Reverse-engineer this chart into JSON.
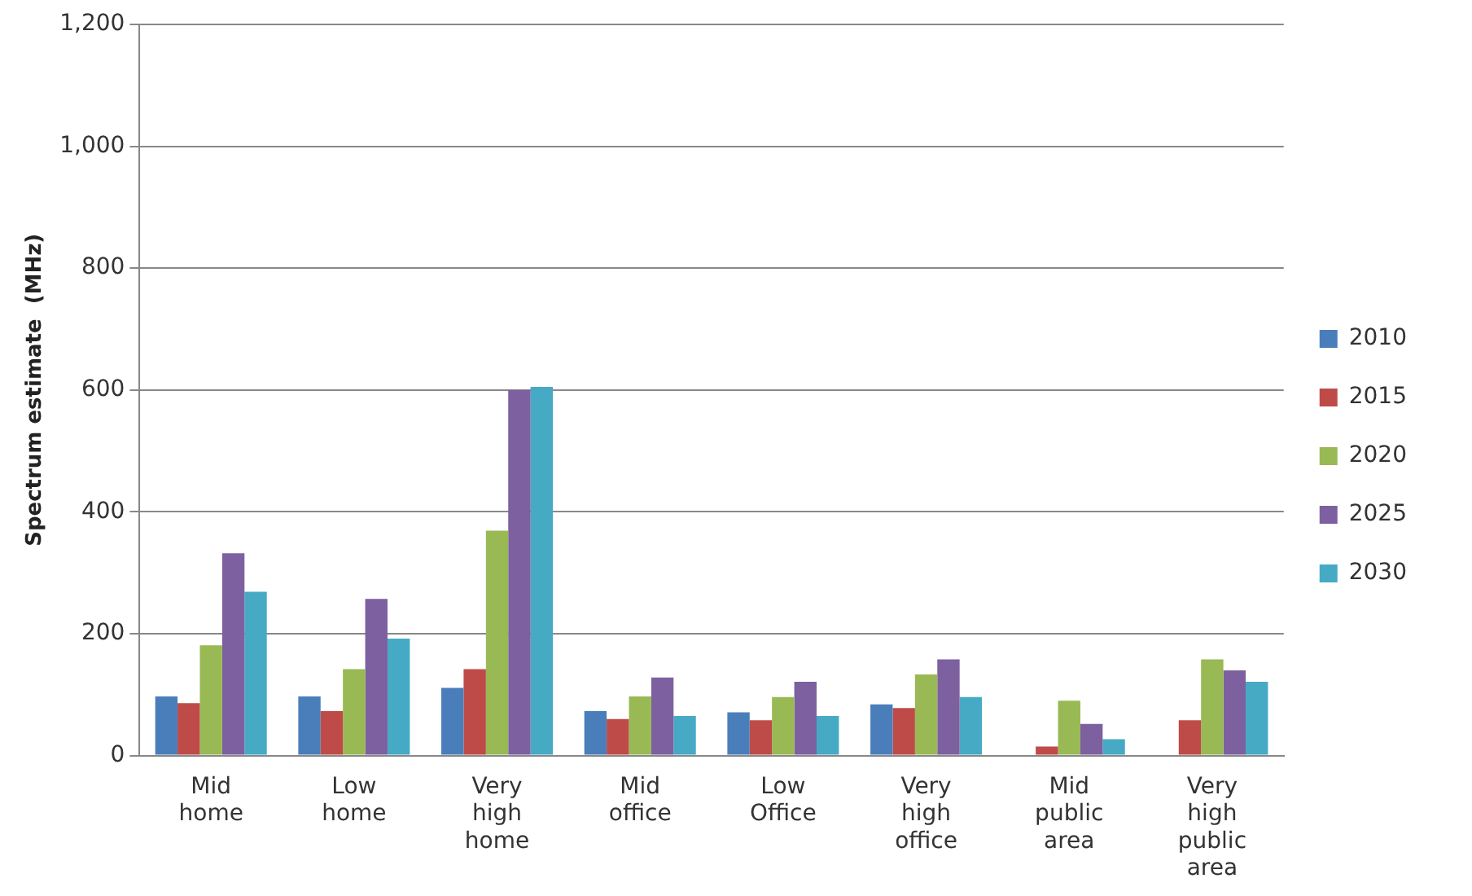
{
  "chart_data": {
    "type": "bar",
    "ylabel": "Spectrum estimate  (MHz)",
    "categories": [
      "Mid home",
      "Low home",
      "Very high home",
      "Mid office",
      "Low Office",
      "Very high office",
      "Mid public area",
      "Very high public area"
    ],
    "series": [
      {
        "name": "2010",
        "color": "#4a7ebb",
        "values": [
          97,
          97,
          111,
          73,
          71,
          84,
          null,
          null
        ]
      },
      {
        "name": "2015",
        "color": "#be4b48",
        "values": [
          86,
          73,
          142,
          60,
          58,
          78,
          15,
          58
        ]
      },
      {
        "name": "2020",
        "color": "#98b954",
        "values": [
          181,
          142,
          369,
          97,
          96,
          133,
          90,
          158
        ]
      },
      {
        "name": "2025",
        "color": "#7d60a0",
        "values": [
          332,
          257,
          600,
          128,
          121,
          158,
          52,
          140
        ]
      },
      {
        "name": "2030",
        "color": "#46aac5",
        "values": [
          269,
          192,
          605,
          65,
          65,
          96,
          27,
          121
        ]
      }
    ],
    "ylim": [
      0,
      1200
    ],
    "yticks": [
      0,
      200,
      400,
      600,
      800,
      {
        "value": 1000,
        "label": "1,000"
      },
      {
        "value": 1200,
        "label": "1,200"
      }
    ],
    "grid": "y",
    "legend": "right"
  }
}
